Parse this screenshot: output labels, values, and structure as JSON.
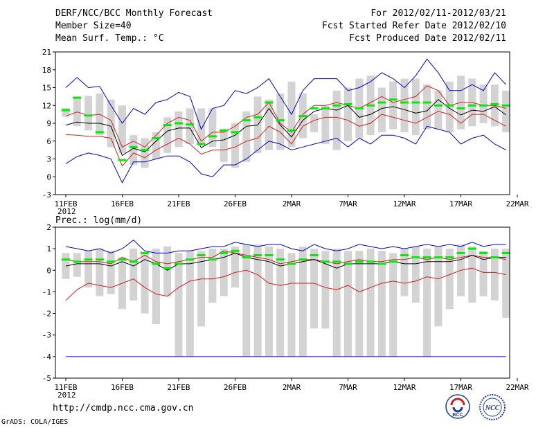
{
  "header": {
    "title": "DERF/NCC/BCC Monthly Forecast",
    "member_size": "Member Size=40",
    "variable": "Mean Surf. Temp.: °C",
    "period": "For 2012/02/11-2012/03/21",
    "started": "Fcst Started Refer Date 2012/02/10",
    "produced": "Fcst Produced Date 2012/02/11"
  },
  "footer": {
    "url": "http://cmdp.ncc.cma.gov.cn",
    "grads": "GrADS: COLA/IGES",
    "logo_bcc": "BCC",
    "logo_ncc": "NCC"
  },
  "colors": {
    "box": "#d3d3d3",
    "median": "#000000",
    "quartile": "#d21e1e",
    "extreme": "#0000cc",
    "observed": "#00ee00"
  },
  "chart_data": [
    {
      "type": "box",
      "title": "Mean Surf. Temp.: °C",
      "ylim": [
        -3,
        21
      ],
      "yticks": [
        -3,
        0,
        3,
        6,
        9,
        12,
        15,
        18,
        21
      ],
      "xlim": [
        11,
        50
      ],
      "xticks": [
        {
          "x": 11,
          "label": "11FEB"
        },
        {
          "x": 16,
          "label": "16FEB"
        },
        {
          "x": 21,
          "label": "21FEB"
        },
        {
          "x": 26,
          "label": "26FEB"
        },
        {
          "x": 31,
          "label": "2MAR"
        },
        {
          "x": 36,
          "label": "7MAR"
        },
        {
          "x": 41,
          "label": "12MAR"
        },
        {
          "x": 46,
          "label": "17MAR"
        },
        {
          "x": 51,
          "label": "22MAR"
        }
      ],
      "year_label": "2012",
      "box_low": [
        10.1,
        8.5,
        7.8,
        7.0,
        5.0,
        4.0,
        2.0,
        1.5,
        3.0,
        4.0,
        5.0,
        5.5,
        5.5,
        5.0,
        2.5,
        1.5,
        2.5,
        4.0,
        4.5,
        4.5,
        5.0,
        6.5,
        7.5,
        5.5,
        4.5,
        6.0,
        6.5,
        7.0,
        7.5,
        8.0,
        7.5,
        7.0,
        8.0,
        8.0,
        7.5,
        8.0,
        8.5,
        9.0,
        8.5,
        7.5
      ],
      "box_high": [
        11.6,
        13.5,
        13.6,
        14.0,
        13.0,
        12.0,
        7.0,
        6.5,
        7.5,
        10.0,
        11.0,
        11.5,
        11.5,
        11.5,
        8.0,
        9.0,
        11.0,
        13.5,
        13.0,
        14.0,
        16.0,
        14.0,
        10.5,
        12.0,
        14.5,
        15.0,
        16.5,
        17.0,
        15.0,
        16.0,
        16.5,
        16.5,
        15.5,
        14.5,
        16.0,
        17.0,
        16.5,
        15.5,
        15.5,
        14.5
      ],
      "extreme_high": [
        15.0,
        16.7,
        15.0,
        15.2,
        12.0,
        9.0,
        11.5,
        10.5,
        12.5,
        13.0,
        14.2,
        13.5,
        8.0,
        11.5,
        12.0,
        14.5,
        14.0,
        15.0,
        16.5,
        13.5,
        10.5,
        14.5,
        16.5,
        16.5,
        16.5,
        14.5,
        15.0,
        16.0,
        17.5,
        16.5,
        15.0,
        17.0,
        19.8,
        17.5,
        14.5,
        14.5,
        15.5,
        14.5,
        17.5,
        15.5
      ],
      "q75": [
        10.2,
        10.9,
        10.3,
        10.5,
        9.5,
        5.0,
        6.0,
        5.0,
        7.0,
        9.0,
        10.0,
        9.5,
        6.0,
        7.5,
        7.5,
        8.5,
        10.0,
        10.5,
        12.5,
        9.0,
        7.5,
        10.5,
        12.0,
        12.0,
        12.5,
        12.0,
        11.5,
        12.5,
        13.5,
        12.5,
        13.0,
        13.5,
        15.3,
        14.5,
        12.0,
        12.5,
        12.5,
        12.0,
        12.0,
        11.5
      ],
      "median": [
        8.7,
        9.2,
        9.0,
        9.0,
        8.5,
        3.6,
        4.8,
        4.2,
        6.0,
        7.7,
        8.2,
        8.2,
        4.9,
        6.0,
        6.2,
        7.0,
        8.5,
        8.7,
        11.5,
        8.7,
        6.7,
        9.5,
        11.0,
        11.5,
        11.2,
        12.0,
        10.0,
        10.5,
        11.5,
        11.8,
        11.3,
        10.7,
        11.1,
        13.0,
        11.5,
        10.4,
        11.2,
        11.0,
        11.8,
        10.4
      ],
      "q25": [
        7.1,
        7.0,
        6.8,
        6.8,
        6.5,
        1.8,
        4.0,
        3.2,
        4.5,
        5.5,
        6.5,
        5.5,
        3.8,
        4.5,
        4.5,
        5.0,
        6.0,
        6.5,
        8.5,
        7.5,
        5.5,
        8.5,
        9.5,
        10.0,
        10.0,
        9.5,
        8.5,
        9.0,
        10.5,
        10.0,
        9.5,
        9.0,
        10.0,
        11.0,
        10.5,
        9.0,
        10.5,
        10.5,
        9.5,
        8.5
      ],
      "extreme_low": [
        2.2,
        3.4,
        4.0,
        3.6,
        3.0,
        -1.0,
        2.5,
        2.5,
        3.0,
        3.5,
        3.5,
        2.5,
        0.5,
        0.0,
        2.0,
        2.0,
        3.0,
        4.5,
        6.0,
        5.5,
        4.5,
        5.0,
        5.5,
        6.0,
        6.5,
        5.0,
        6.5,
        5.5,
        7.0,
        7.0,
        6.5,
        5.5,
        8.5,
        8.0,
        7.5,
        5.5,
        6.5,
        7.0,
        5.5,
        4.5
      ],
      "observed": [
        11.2,
        13.3,
        10.3,
        7.5,
        null,
        2.8,
        5.0,
        4.5,
        6.5,
        8.7,
        9.0,
        8.8,
        5.5,
        6.8,
        7.8,
        7.5,
        9.5,
        10.0,
        12.5,
        9.5,
        7.8,
        10.2,
        11.5,
        11.5,
        12.0,
        12.2,
        11.5,
        12.0,
        12.5,
        13.0,
        12.5,
        12.5,
        12.5,
        12.0,
        12.0,
        11.5,
        12.0,
        12.0,
        12.2,
        12.0
      ]
    },
    {
      "type": "box",
      "title": "Prec.: log(mm/d)",
      "ylim": [
        -5,
        2
      ],
      "yticks": [
        -5,
        -4,
        -3,
        -2,
        -1,
        0,
        1,
        2
      ],
      "xlim": [
        11,
        50
      ],
      "xticks": [
        {
          "x": 11,
          "label": "11FEB"
        },
        {
          "x": 16,
          "label": "16FEB"
        },
        {
          "x": 21,
          "label": "21FEB"
        },
        {
          "x": 26,
          "label": "26FEB"
        },
        {
          "x": 31,
          "label": "2MAR"
        },
        {
          "x": 36,
          "label": "7MAR"
        },
        {
          "x": 41,
          "label": "12MAR"
        },
        {
          "x": 46,
          "label": "17MAR"
        },
        {
          "x": 51,
          "label": "22MAR"
        }
      ],
      "year_label": "2012",
      "reference_line": -4,
      "box_low": [
        -0.4,
        -0.3,
        -0.8,
        -1.2,
        -1.1,
        -1.8,
        -1.4,
        -2.0,
        -2.5,
        -1.2,
        -4.0,
        -4.0,
        -2.6,
        -1.5,
        -1.2,
        -0.8,
        -4.0,
        -4.0,
        -4.0,
        -4.0,
        -4.0,
        -4.0,
        -2.7,
        -2.7,
        -4.0,
        -4.0,
        -4.0,
        -4.0,
        -4.0,
        -4.0,
        -1.2,
        -1.5,
        -4.0,
        -2.6,
        -1.8,
        -1.2,
        -1.5,
        -1.2,
        -1.4,
        -2.2
      ],
      "box_high": [
        0.8,
        0.8,
        0.9,
        1.0,
        0.9,
        0.6,
        1.0,
        0.8,
        1.0,
        1.1,
        0.8,
        0.9,
        0.9,
        1.0,
        1.0,
        1.1,
        1.2,
        1.2,
        1.1,
        1.0,
        0.8,
        1.1,
        1.0,
        0.9,
        1.0,
        0.9,
        0.9,
        1.0,
        0.9,
        0.8,
        1.0,
        1.1,
        1.0,
        1.1,
        1.0,
        1.2,
        1.1,
        0.9,
        1.0,
        1.0
      ],
      "extreme_high": [
        1.1,
        1.0,
        0.9,
        1.0,
        0.8,
        1.0,
        1.4,
        0.9,
        0.8,
        0.8,
        0.9,
        0.9,
        1.0,
        1.1,
        1.1,
        1.3,
        1.2,
        1.1,
        1.2,
        1.2,
        1.0,
        0.9,
        1.2,
        1.0,
        0.9,
        1.0,
        1.2,
        1.1,
        1.0,
        1.1,
        1.0,
        1.1,
        1.2,
        1.1,
        1.2,
        1.1,
        1.3,
        1.1,
        1.2,
        1.2
      ],
      "q75": [
        0.5,
        0.4,
        0.4,
        0.4,
        0.3,
        0.6,
        0.4,
        0.7,
        0.4,
        0.3,
        0.4,
        0.5,
        0.6,
        0.6,
        0.9,
        0.8,
        0.7,
        0.6,
        0.5,
        0.3,
        0.4,
        0.5,
        0.5,
        0.4,
        0.3,
        0.4,
        0.5,
        0.4,
        0.4,
        0.5,
        0.5,
        0.6,
        0.5,
        0.6,
        0.5,
        0.6,
        0.7,
        0.6,
        0.6,
        0.5
      ],
      "median": [
        0.2,
        0.3,
        0.3,
        0.3,
        0.2,
        0.4,
        0.2,
        0.5,
        0.3,
        0.0,
        0.3,
        0.3,
        0.4,
        0.5,
        0.6,
        0.8,
        0.6,
        0.5,
        0.4,
        0.2,
        0.3,
        0.4,
        0.5,
        0.3,
        0.1,
        0.3,
        0.3,
        0.3,
        0.3,
        0.4,
        0.3,
        0.3,
        0.4,
        0.4,
        0.4,
        0.5,
        0.7,
        0.5,
        0.6,
        0.6
      ],
      "q25": [
        -1.4,
        -0.9,
        -0.6,
        -0.7,
        -0.8,
        -0.6,
        -0.4,
        -0.8,
        -1.1,
        -1.2,
        -0.8,
        -0.5,
        -0.4,
        -0.4,
        -0.3,
        -0.1,
        0.0,
        -0.2,
        -0.6,
        -0.7,
        -0.6,
        -0.6,
        -0.6,
        -0.8,
        -0.9,
        -0.7,
        -1.0,
        -0.8,
        -0.6,
        -0.5,
        -0.6,
        -0.5,
        -0.3,
        -0.4,
        -0.2,
        0.0,
        0.1,
        -0.1,
        -0.1,
        -0.2
      ],
      "extreme_low": [
        -4.0,
        -4.0,
        -4.0,
        -4.0,
        -4.0,
        -4.0,
        -4.0,
        -4.0,
        -4.0,
        -4.0,
        -4.0,
        -4.0,
        -4.0,
        -4.0,
        -4.0,
        -4.0,
        -4.0,
        -4.0,
        -4.0,
        -4.0,
        -4.0,
        -4.0,
        -4.0,
        -4.0,
        -4.0,
        -4.0,
        -4.0,
        -4.0,
        -4.0,
        -4.0,
        -4.0,
        -4.0,
        -4.0,
        -4.0,
        -4.0,
        -4.0,
        -4.0,
        -4.0,
        -4.0,
        -4.0
      ],
      "observed": [
        0.5,
        0.4,
        0.5,
        0.5,
        0.4,
        0.5,
        0.4,
        0.8,
        0.3,
        0.1,
        0.3,
        0.5,
        0.7,
        0.5,
        0.8,
        0.9,
        0.6,
        0.7,
        0.7,
        0.5,
        0.3,
        0.5,
        0.7,
        0.4,
        0.4,
        0.3,
        0.4,
        0.4,
        0.3,
        0.4,
        0.7,
        0.6,
        0.6,
        0.6,
        0.6,
        0.8,
        1.0,
        0.8,
        0.6,
        0.8
      ]
    }
  ]
}
